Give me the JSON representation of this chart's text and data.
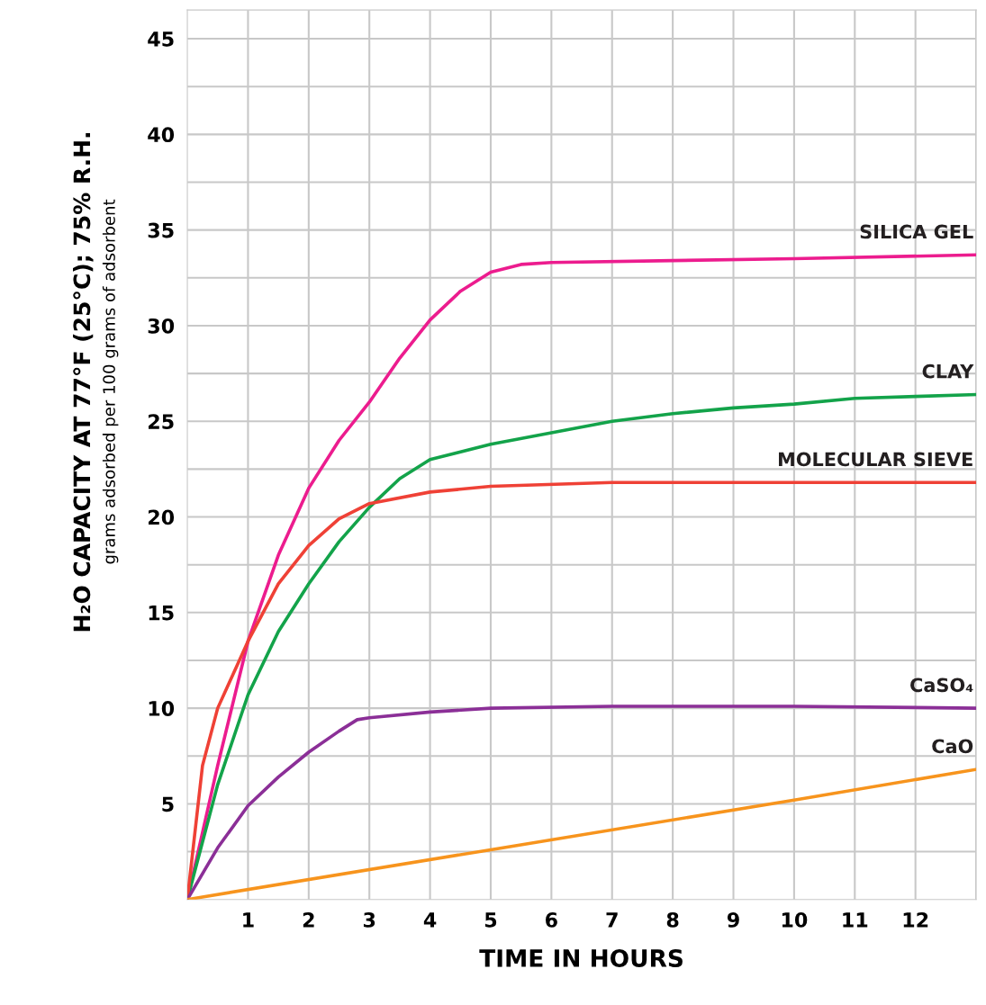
{
  "chart_data": {
    "type": "line",
    "xlabel": "TIME IN HOURS",
    "ylabel": "H₂O CAPACITY AT 77°F (25°C); 75% R.H.",
    "annotations": [
      "grams adsorbed per 100 grams of adsorbent"
    ],
    "xlim": [
      0,
      13
    ],
    "ylim": [
      0,
      46.5
    ],
    "xticks": [
      1,
      2,
      3,
      4,
      5,
      6,
      7,
      8,
      9,
      10,
      11,
      12,
      {
        "value": 13,
        "label": null
      }
    ],
    "yticks": [
      {
        "value": 2.5,
        "label": null
      },
      5,
      {
        "value": 7.5,
        "label": null
      },
      10,
      {
        "value": 12.5,
        "label": null
      },
      15,
      {
        "value": 17.5,
        "label": null
      },
      20,
      {
        "value": 22.5,
        "label": null
      },
      25,
      {
        "value": 27.5,
        "label": null
      },
      30,
      {
        "value": 32.5,
        "label": null
      },
      35,
      {
        "value": 37.5,
        "label": null
      },
      40,
      {
        "value": 42.5,
        "label": null
      },
      45
    ],
    "grid": true,
    "legend": false,
    "marker": "none",
    "line_style": "solid",
    "series": [
      {
        "name": "SILICA GEL",
        "color": "#ec1c8e",
        "x": [
          0,
          0.5,
          1,
          1.5,
          2,
          2.5,
          3,
          3.5,
          4,
          4.5,
          5,
          5.5,
          6,
          8,
          10,
          13
        ],
        "values": [
          0,
          7,
          13.5,
          18,
          21.5,
          24,
          26,
          28.3,
          30.3,
          31.8,
          32.8,
          33.2,
          33.3,
          33.4,
          33.5,
          33.7
        ]
      },
      {
        "name": "CLAY",
        "color": "#13a34a",
        "x": [
          0,
          0.5,
          1,
          1.5,
          2,
          2.5,
          3,
          3.5,
          4,
          5,
          6,
          7,
          8,
          9,
          10,
          11,
          12,
          13
        ],
        "values": [
          0,
          6,
          10.7,
          14,
          16.5,
          18.7,
          20.5,
          22,
          23,
          23.8,
          24.4,
          25,
          25.4,
          25.7,
          25.9,
          26.2,
          26.3,
          26.4
        ]
      },
      {
        "name": "MOLECULAR SIEVE",
        "color": "#ef4136",
        "x": [
          0,
          0.25,
          0.5,
          1,
          1.5,
          2,
          2.5,
          3,
          4,
          5,
          7,
          10,
          13
        ],
        "values": [
          0,
          7,
          10,
          13.5,
          16.5,
          18.5,
          19.9,
          20.7,
          21.3,
          21.6,
          21.8,
          21.8,
          21.8
        ]
      },
      {
        "name": "CaSO₄",
        "color": "#8b2f97",
        "x": [
          0,
          0.5,
          1,
          1.5,
          2,
          2.5,
          2.8,
          3,
          4,
          5,
          7,
          10,
          13
        ],
        "values": [
          0,
          2.7,
          4.9,
          6.4,
          7.7,
          8.8,
          9.4,
          9.5,
          9.8,
          10,
          10.1,
          10.1,
          10
        ]
      },
      {
        "name": "CaO",
        "color": "#f7941d",
        "x": [
          0,
          5,
          10,
          13
        ],
        "values": [
          0,
          2.6,
          5.2,
          6.8
        ]
      }
    ]
  }
}
